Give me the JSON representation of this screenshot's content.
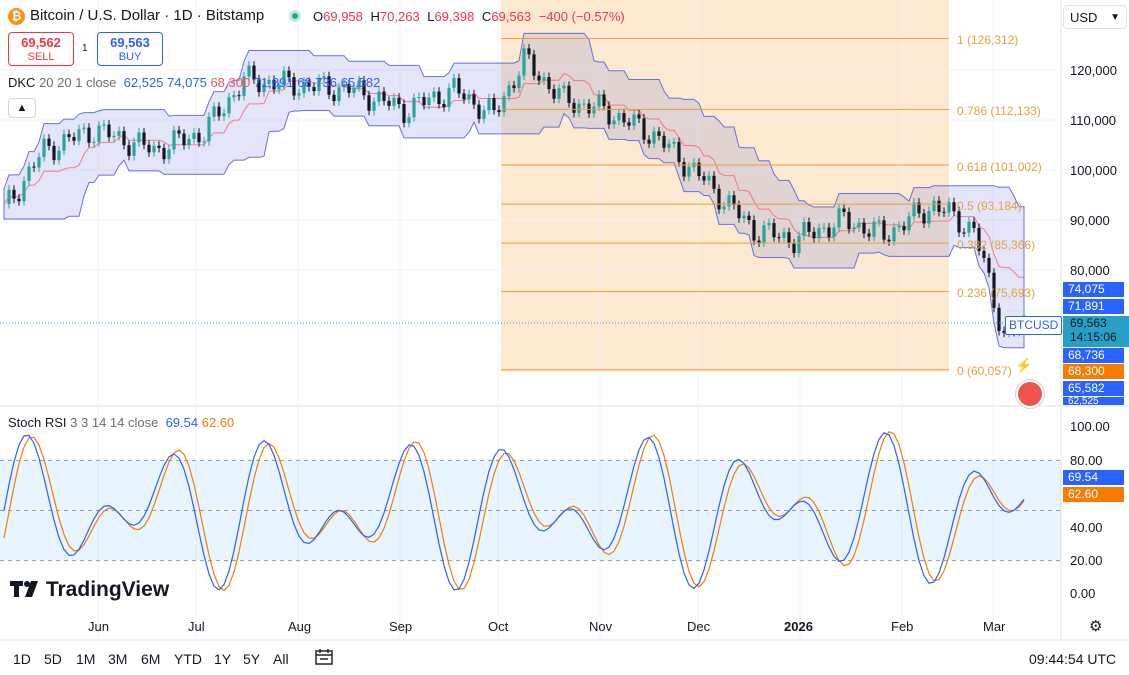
{
  "header": {
    "symbol_icon": "bitcoin-icon",
    "title": "Bitcoin / U.S. Dollar · 1D · Bitstamp",
    "ohlc": [
      {
        "key": "O",
        "value": "69,958"
      },
      {
        "key": "H",
        "value": "70,263"
      },
      {
        "key": "L",
        "value": "69,398"
      },
      {
        "key": "C",
        "value": "69,563"
      }
    ],
    "change": "−400 (−0.57%)",
    "currency": "USD"
  },
  "trade": {
    "sell_price": "69,562",
    "sell_label": "SELL",
    "spread": "1",
    "buy_price": "69,563",
    "buy_label": "BUY"
  },
  "indicators": {
    "dkc": {
      "name": "DKC",
      "params": "20 20 1 close",
      "values": [
        "62,525",
        "74,075",
        "68,300",
        "71,891",
        "68,736",
        "65,582"
      ]
    },
    "stoch": {
      "name": "Stoch RSI",
      "params": "3 3 14 14 close",
      "k": "69.54",
      "d": "62.60"
    }
  },
  "price_axis": {
    "ticks": [
      "120,000",
      "110,000",
      "100,000",
      "90,000",
      "80,000"
    ],
    "labels": [
      {
        "text": "74,075",
        "color": "#2962ff"
      },
      {
        "text": "71,891",
        "color": "#2962ff"
      },
      {
        "text": "68,736",
        "color": "#2962ff"
      },
      {
        "text": "68,300",
        "color": "#f57c00"
      },
      {
        "text": "65,582",
        "color": "#2962ff"
      },
      {
        "text": "62,525",
        "color": "#2962ff"
      }
    ],
    "current_price": "69,563",
    "countdown": "14:15:06",
    "symbol_tag": "BTCUSD"
  },
  "fib": [
    {
      "label": "1 (126,312)",
      "price": 126312
    },
    {
      "label": "0.786 (112,133)",
      "price": 112133
    },
    {
      "label": "0.618 (101,002)",
      "price": 101002
    },
    {
      "label": "0.5 (93,184)",
      "price": 93184
    },
    {
      "label": "0.382 (85,366)",
      "price": 85366
    },
    {
      "label": "0.236 (75,693)",
      "price": 75693
    },
    {
      "label": "0 (60,057)",
      "price": 60057
    }
  ],
  "stoch_axis": {
    "ticks": [
      "100.00",
      "80.00",
      "40.00",
      "20.00",
      "0.00"
    ],
    "k_label": "69.54",
    "d_label": "62.60"
  },
  "time_axis": {
    "labels": [
      "Jun",
      "Jul",
      "Aug",
      "Sep",
      "Oct",
      "Nov",
      "Dec",
      "2026",
      "Feb",
      "Mar"
    ]
  },
  "branding": {
    "logo_text": "TradingView"
  },
  "bottom_bar": {
    "timeframes": [
      "1D",
      "5D",
      "1M",
      "3M",
      "6M",
      "YTD",
      "1Y",
      "5Y",
      "All"
    ],
    "clock": "09:44:54 UTC"
  },
  "colors": {
    "up": "#26a69a",
    "down": "#131722",
    "channel": "#6770e0",
    "fib": "#e6a23c",
    "fib_zone": "#fce9cf",
    "stoch_k": "#2962ff",
    "stoch_d": "#f57c00"
  }
}
